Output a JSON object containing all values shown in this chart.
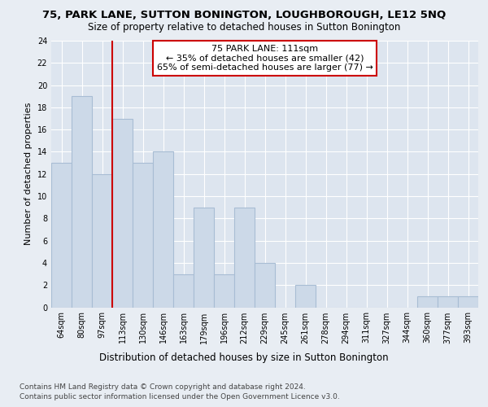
{
  "title1": "75, PARK LANE, SUTTON BONINGTON, LOUGHBOROUGH, LE12 5NQ",
  "title2": "Size of property relative to detached houses in Sutton Bonington",
  "xlabel": "Distribution of detached houses by size in Sutton Bonington",
  "ylabel": "Number of detached properties",
  "categories": [
    "64sqm",
    "80sqm",
    "97sqm",
    "113sqm",
    "130sqm",
    "146sqm",
    "163sqm",
    "179sqm",
    "196sqm",
    "212sqm",
    "229sqm",
    "245sqm",
    "261sqm",
    "278sqm",
    "294sqm",
    "311sqm",
    "327sqm",
    "344sqm",
    "360sqm",
    "377sqm",
    "393sqm"
  ],
  "values": [
    13,
    19,
    12,
    17,
    13,
    14,
    3,
    9,
    3,
    9,
    4,
    0,
    2,
    0,
    0,
    0,
    0,
    0,
    1,
    1,
    1
  ],
  "bar_color": "#ccd9e8",
  "bar_edge_color": "#a8bdd4",
  "marker_index": 3,
  "marker_label": "75 PARK LANE: 111sqm",
  "annotation_line1": "← 35% of detached houses are smaller (42)",
  "annotation_line2": "65% of semi-detached houses are larger (77) →",
  "marker_color": "#cc0000",
  "ylim": [
    0,
    24
  ],
  "yticks": [
    0,
    2,
    4,
    6,
    8,
    10,
    12,
    14,
    16,
    18,
    20,
    22,
    24
  ],
  "footnote1": "Contains HM Land Registry data © Crown copyright and database right 2024.",
  "footnote2": "Contains public sector information licensed under the Open Government Licence v3.0.",
  "background_color": "#e8edf3",
  "plot_background": "#dde5ef",
  "title1_fontsize": 9.5,
  "title2_fontsize": 8.5,
  "xlabel_fontsize": 8.5,
  "ylabel_fontsize": 8,
  "tick_fontsize": 7,
  "annot_fontsize": 8,
  "footnote_fontsize": 6.5
}
